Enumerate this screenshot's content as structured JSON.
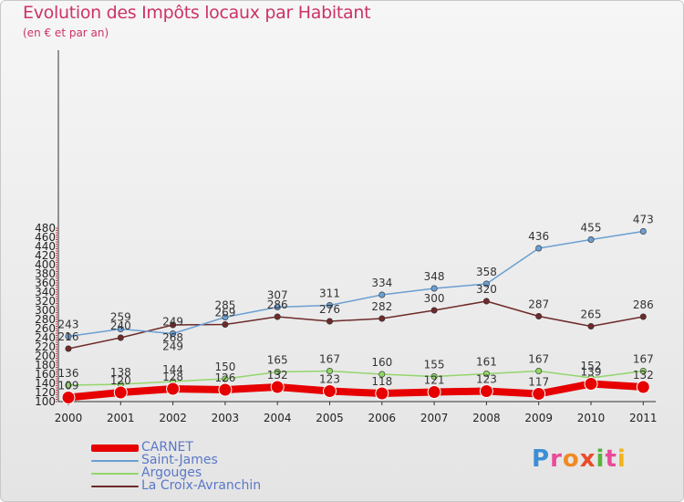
{
  "title": "Evolution des Impôts locaux par Habitant",
  "subtitle": "(en € et par an)",
  "brand": [
    "P",
    "r",
    "o",
    "x",
    "i",
    "t",
    "i"
  ],
  "brand_colors": [
    "#3a8fd6",
    "#e94b9a",
    "#f08a24",
    "#e94b2a",
    "#56b43c",
    "#e94b9a",
    "#f2b418"
  ],
  "chart_data": {
    "type": "line",
    "title": "Evolution des Impôts locaux par Habitant",
    "subtitle": "(en € et par an)",
    "xlabel": "",
    "ylabel": "",
    "categories": [
      "2000",
      "2001",
      "2002",
      "2003",
      "2004",
      "2005",
      "2006",
      "2007",
      "2008",
      "2009",
      "2010",
      "2011"
    ],
    "ylim": [
      100,
      480
    ],
    "yticks": [
      100,
      120,
      140,
      160,
      180,
      200,
      220,
      240,
      260,
      280,
      300,
      320,
      340,
      360,
      380,
      400,
      420,
      440,
      460,
      480
    ],
    "grid": false,
    "legend": "bottom-left",
    "series": [
      {
        "name": "CARNET",
        "color": "#e60000",
        "values": [
          109,
          120,
          128,
          126,
          132,
          123,
          118,
          121,
          123,
          117,
          139,
          132
        ]
      },
      {
        "name": "Saint-James",
        "color": "#6a9fd2",
        "values": [
          243,
          259,
          249,
          285,
          307,
          311,
          334,
          348,
          358,
          436,
          455,
          473
        ]
      },
      {
        "name": "Argouges",
        "color": "#92d66a",
        "values": [
          136,
          138,
          144,
          150,
          165,
          167,
          160,
          155,
          161,
          167,
          152,
          167
        ]
      },
      {
        "name": "La Croix-Avranchin",
        "color": "#6e2a2a",
        "values": [
          216,
          240,
          268,
          269,
          286,
          276,
          282,
          300,
          320,
          287,
          265,
          286
        ]
      }
    ],
    "point_labels": [
      [
        "109",
        "120",
        "128",
        "126",
        "132",
        "123",
        "118",
        "121",
        "123",
        "117",
        "139",
        "132"
      ],
      [
        "243",
        "259",
        "249",
        "285",
        "307",
        "311",
        "334",
        "348",
        "358",
        "436",
        "455",
        "473"
      ],
      [
        "136",
        "138",
        "144",
        "150",
        "165",
        "167",
        "160",
        "155",
        "161",
        "167",
        "152",
        "167"
      ],
      [
        "216",
        "240",
        "",
        "269",
        "286",
        "276",
        "282",
        "300",
        "320",
        "287",
        "265",
        "286"
      ]
    ],
    "extra_labels": [
      {
        "series": 3,
        "index": 2,
        "text": "268"
      },
      {
        "series": 1,
        "index": 2,
        "text": "249"
      }
    ]
  }
}
